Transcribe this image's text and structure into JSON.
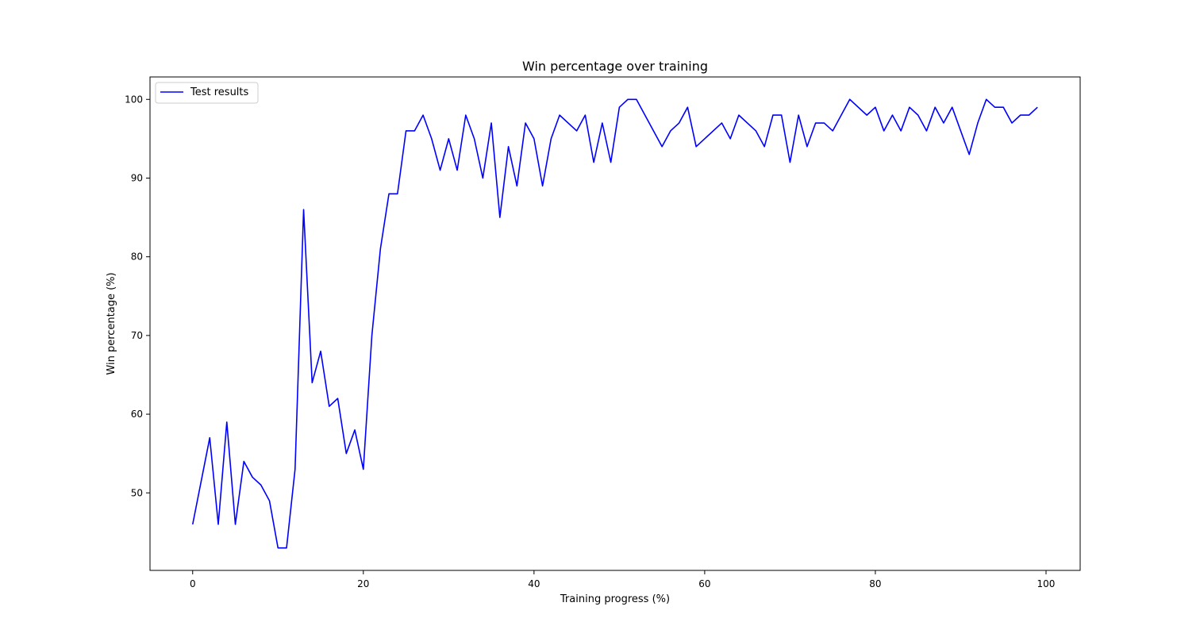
{
  "chart_data": {
    "type": "line",
    "title": "Win percentage over training",
    "xlabel": "Training progress (%)",
    "ylabel": "Win percentage (%)",
    "xlim": [
      -5,
      104
    ],
    "ylim": [
      40.15,
      102.85
    ],
    "xticks": [
      0,
      20,
      40,
      60,
      80,
      100
    ],
    "yticks": [
      50,
      60,
      70,
      80,
      90,
      100
    ],
    "grid": false,
    "legend_position": "top-left",
    "series": [
      {
        "name": "Test results",
        "color": "#0000ff",
        "x": [
          0,
          2,
          3,
          4,
          5,
          6,
          7,
          8,
          9,
          10,
          11,
          12,
          13,
          14,
          15,
          16,
          17,
          18,
          19,
          20,
          21,
          22,
          23,
          24,
          25,
          26,
          27,
          28,
          29,
          30,
          31,
          32,
          33,
          34,
          35,
          36,
          37,
          38,
          39,
          40,
          41,
          42,
          43,
          45,
          46,
          47,
          48,
          49,
          50,
          51,
          52,
          55,
          56,
          57,
          58,
          59,
          62,
          63,
          64,
          66,
          67,
          68,
          69,
          70,
          71,
          72,
          73,
          74,
          75,
          77,
          79,
          80,
          81,
          82,
          83,
          84,
          85,
          86,
          87,
          88,
          89,
          91,
          92,
          93,
          94,
          95,
          96,
          97,
          98,
          99
        ],
        "y": [
          46,
          57,
          46,
          59,
          46,
          54,
          52,
          51,
          49,
          43,
          43,
          53,
          86,
          64,
          68,
          61,
          62,
          55,
          58,
          53,
          70,
          81,
          88,
          88,
          96,
          96,
          98,
          95,
          91,
          95,
          91,
          98,
          95,
          90,
          97,
          85,
          94,
          89,
          97,
          95,
          89,
          95,
          98,
          96,
          98,
          92,
          97,
          92,
          99,
          100,
          100,
          94,
          96,
          97,
          99,
          94,
          97,
          95,
          98,
          96,
          94,
          98,
          98,
          92,
          98,
          94,
          97,
          97,
          96,
          100,
          98,
          99,
          96,
          98,
          96,
          99,
          98,
          96,
          99,
          97,
          99,
          93,
          97,
          100,
          99,
          99,
          97,
          98,
          98,
          99
        ]
      }
    ]
  }
}
